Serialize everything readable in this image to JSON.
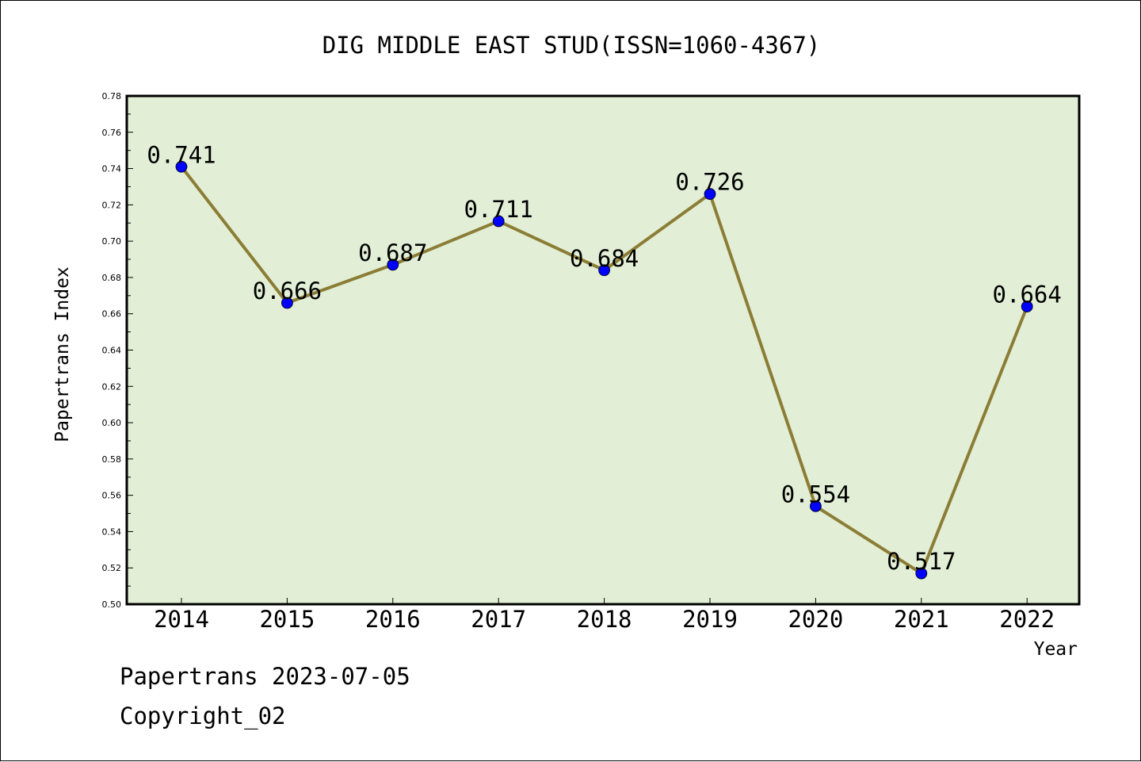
{
  "chart_data": {
    "type": "line",
    "title": "DIG MIDDLE EAST STUD(ISSN=1060-4367)",
    "xlabel": "Year",
    "ylabel": "Papertrans Index",
    "categories": [
      "2014",
      "2015",
      "2016",
      "2017",
      "2018",
      "2019",
      "2020",
      "2021",
      "2022"
    ],
    "values": [
      0.741,
      0.666,
      0.687,
      0.711,
      0.684,
      0.726,
      0.554,
      0.517,
      0.664
    ],
    "data_labels": [
      "0.741",
      "0.666",
      "0.687",
      "0.711",
      "0.684",
      "0.726",
      "0.554",
      "0.517",
      "0.664"
    ],
    "ylim": [
      0.5,
      0.78
    ],
    "yticks": [
      "0.50",
      "0.52",
      "0.54",
      "0.56",
      "0.58",
      "0.60",
      "0.62",
      "0.64",
      "0.66",
      "0.68",
      "0.70",
      "0.72",
      "0.74",
      "0.76",
      "0.78"
    ],
    "grid": false,
    "legend": "none",
    "colors": {
      "plot_background": "#e2efd6",
      "line": "#8b7d35",
      "marker": "#0000ff"
    }
  },
  "footer": {
    "line1": "Papertrans 2023-07-05",
    "line2": "Copyright_02"
  }
}
